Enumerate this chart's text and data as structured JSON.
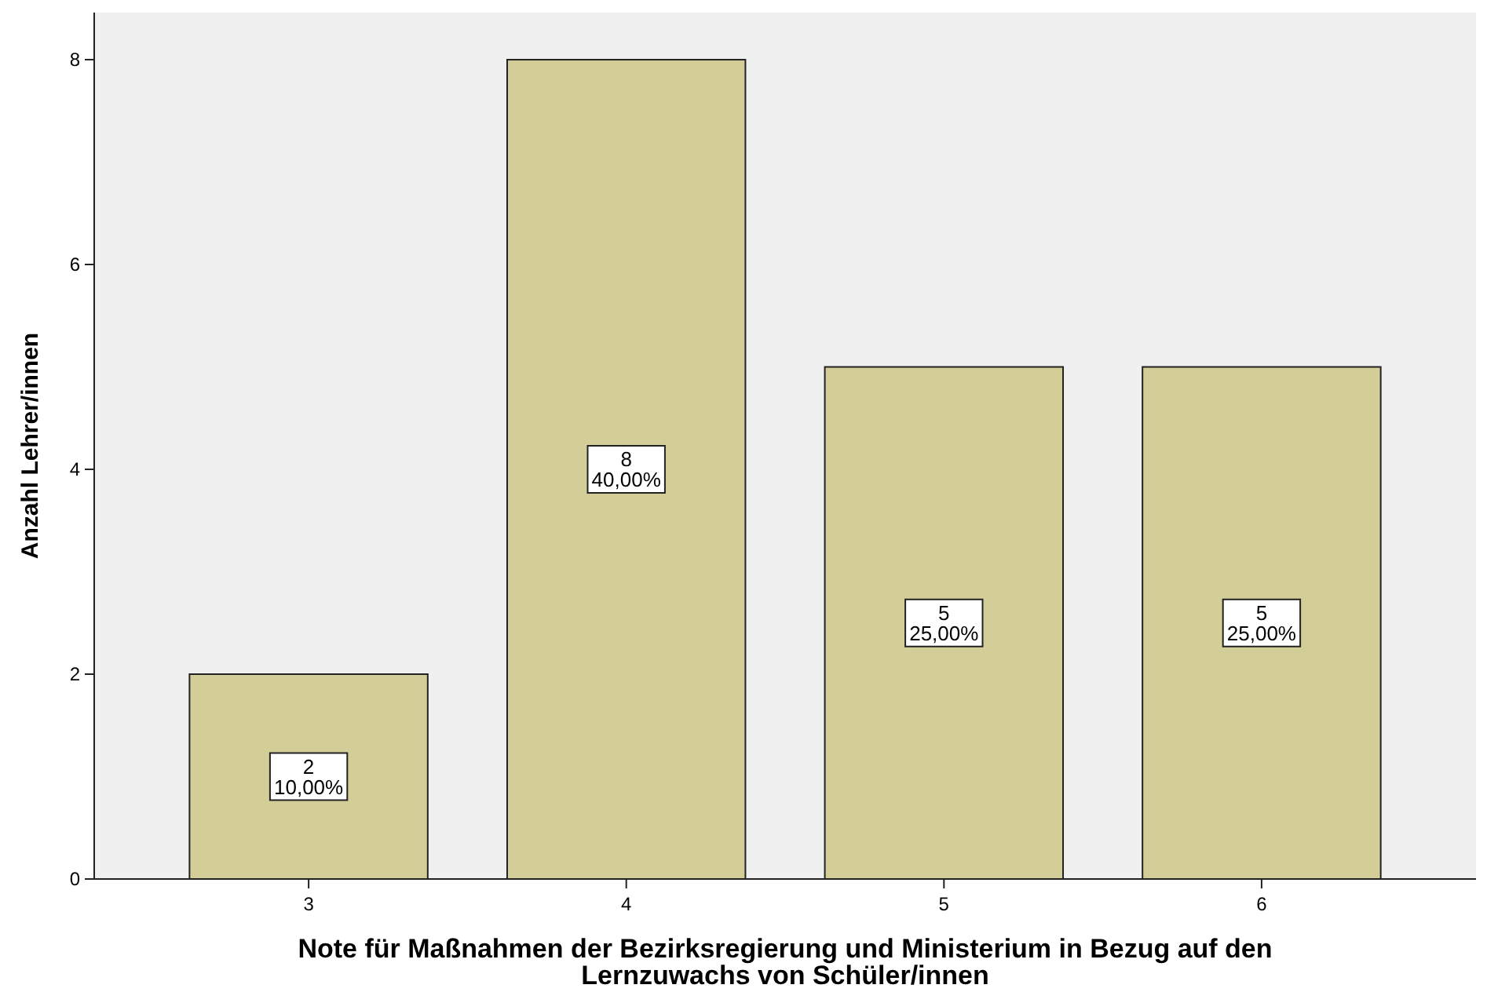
{
  "chart_data": {
    "type": "bar",
    "xlabel": "Note für Maßnahmen der Bezirksregierung und Ministerium in Bezug auf den Lernzuwachs von Schüler/innen",
    "ylabel": "Anzahl Lehrer/innen",
    "categories": [
      "3",
      "4",
      "5",
      "6"
    ],
    "values": [
      2,
      8,
      5,
      5
    ],
    "value_labels": [
      "2\n10,00%",
      "8\n40,00%",
      "5\n25,00%",
      "5\n25,00%"
    ],
    "color": "#d3ce97",
    "ylim": [
      0,
      8.46
    ],
    "yticks": [
      0,
      2,
      4,
      6,
      8
    ],
    "grid": false
  }
}
